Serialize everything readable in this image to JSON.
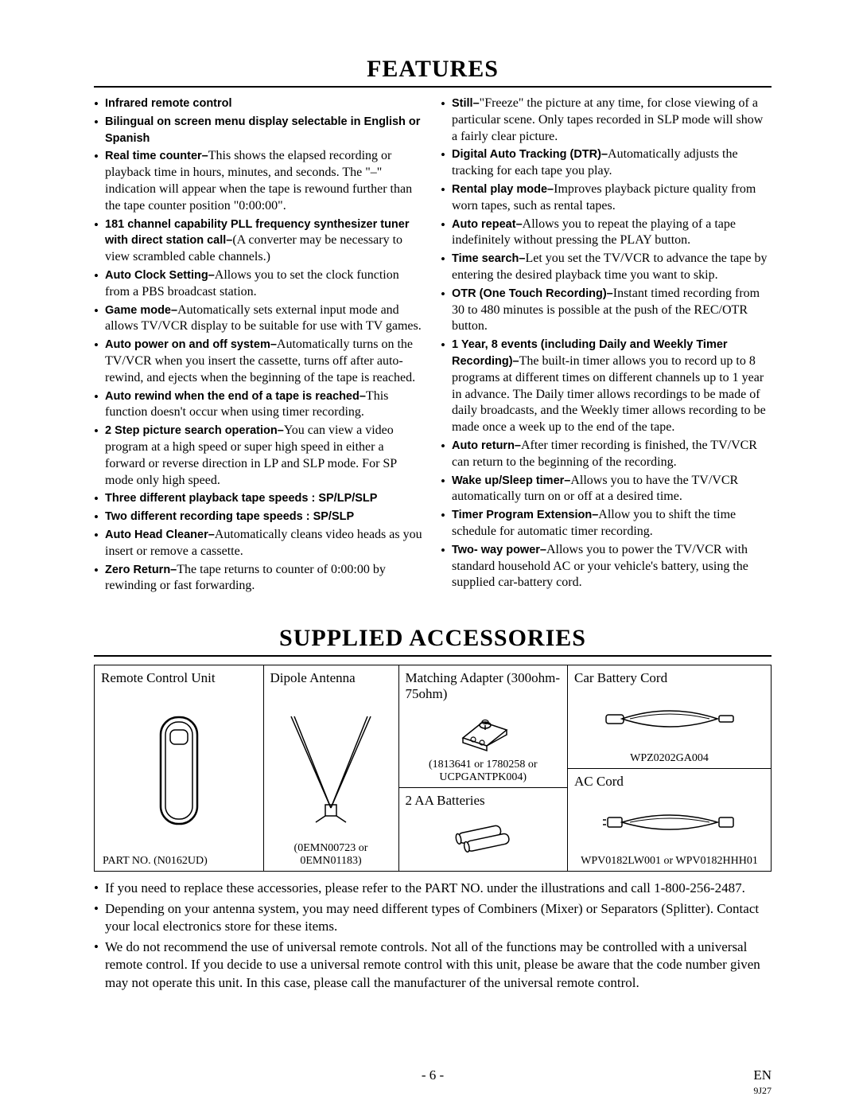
{
  "headings": {
    "features": "FEATURES",
    "accessories": "SUPPLIED ACCESSORIES"
  },
  "features_left": [
    {
      "bold": "Infrared remote control",
      "text": ""
    },
    {
      "bold": "Bilingual on screen menu display selectable in English or Spanish",
      "text": ""
    },
    {
      "bold": "Real time counter–",
      "text": "This shows the elapsed recording or playback time in hours, minutes, and seconds. The \"–\" indication will appear when the tape is rewound further than the tape counter position \"0:00:00\"."
    },
    {
      "bold": "181 channel capability PLL frequency synthesizer tuner with direct station call–",
      "text": "(A converter may be necessary to view scrambled cable channels.)"
    },
    {
      "bold": "Auto Clock Setting–",
      "text": "Allows you to set the clock function from a PBS broadcast station."
    },
    {
      "bold": "Game mode–",
      "text": "Automatically sets external input mode and allows TV/VCR display to be suitable for use with TV games."
    },
    {
      "bold": "Auto power on and off system–",
      "text": "Automatically turns on the TV/VCR when you insert the cassette, turns off after auto-rewind, and ejects when the beginning of the tape is reached."
    },
    {
      "bold": "Auto rewind when the end of a tape is reached–",
      "text": "This function doesn't occur when using timer recording."
    },
    {
      "bold": "2 Step picture search operation–",
      "text": "You can view a video program at a high speed or super high speed in either a forward or reverse direction in LP and SLP mode. For SP mode only high speed."
    },
    {
      "bold": "Three different playback tape speeds : SP/LP/SLP",
      "text": ""
    },
    {
      "bold": "Two different recording tape speeds : SP/SLP",
      "text": ""
    },
    {
      "bold": "Auto Head Cleaner–",
      "text": "Automatically cleans video heads as you insert or remove a cassette."
    },
    {
      "bold": "Zero Return–",
      "text": "The tape returns to counter of 0:00:00 by rewinding or fast forwarding."
    }
  ],
  "features_right": [
    {
      "bold": "Still–",
      "text": "\"Freeze\" the picture at any time, for close viewing of a particular scene. Only tapes recorded in SLP mode will show a fairly clear picture."
    },
    {
      "bold": "Digital Auto Tracking (DTR)–",
      "text": "Automatically adjusts the tracking for each tape you play."
    },
    {
      "bold": "Rental play mode–",
      "text": "Improves playback picture quality from worn tapes, such as rental tapes."
    },
    {
      "bold": "Auto repeat–",
      "text": "Allows you to repeat the playing of a tape indefinitely without pressing the PLAY button."
    },
    {
      "bold": "Time search–",
      "text": "Let you set the TV/VCR to advance the tape by entering the desired playback time you want to skip."
    },
    {
      "bold": "OTR (One Touch Recording)–",
      "text": "Instant timed recording from 30 to 480 minutes is possible at the push of the REC/OTR button."
    },
    {
      "bold": "1 Year, 8 events (including Daily and Weekly Timer Recording)–",
      "text": "The built-in timer allows you to record up to 8 programs at different times on different channels up to 1 year in advance. The Daily timer allows recordings to be made of daily broadcasts, and the Weekly timer allows recording to be made once a week up to the end of the tape."
    },
    {
      "bold": "Auto return–",
      "text": "After timer recording is finished, the TV/VCR can return to the beginning of the recording."
    },
    {
      "bold": "Wake up/Sleep timer–",
      "text": "Allows you to have the TV/VCR automatically turn on or off at a desired time."
    },
    {
      "bold": "Timer Program Extension–",
      "text": "Allow you to shift the time schedule for automatic timer recording."
    },
    {
      "bold": "Two- way power–",
      "text": "Allows you to power the TV/VCR with standard household AC or your vehicle's battery, using the supplied car-battery cord."
    }
  ],
  "accessories": {
    "remote": {
      "label": "Remote Control Unit",
      "part": "PART NO. (N0162UD)"
    },
    "antenna": {
      "label": "Dipole Antenna",
      "part": "(0EMN00723 or 0EMN01183)"
    },
    "adapter": {
      "label": "Matching Adapter (300ohm-75ohm)",
      "part": "(1813641 or 1780258 or UCPGANTPK004)"
    },
    "batteries": {
      "label": "2 AA Batteries"
    },
    "carcord": {
      "label": "Car Battery Cord",
      "part": "WPZ0202GA004"
    },
    "accord": {
      "label": "AC Cord",
      "part": "WPV0182LW001 or WPV0182HHH01"
    }
  },
  "notes": [
    "If you need to replace these accessories, please refer to the PART NO. under the illustrations and call 1-800-256-2487.",
    "Depending on your antenna system, you may need different types of Combiners (Mixer) or Separators (Splitter). Contact your local electronics store for these items.",
    "We do not recommend the use of universal remote controls. Not all of the functions may be controlled with a universal remote control. If you decide to use a universal remote control with this unit, please be aware that the code number given may not operate this unit. In this case, please call the manufacturer of the universal remote control."
  ],
  "footer": {
    "page": "- 6 -",
    "lang": "EN",
    "code": "9J27"
  }
}
